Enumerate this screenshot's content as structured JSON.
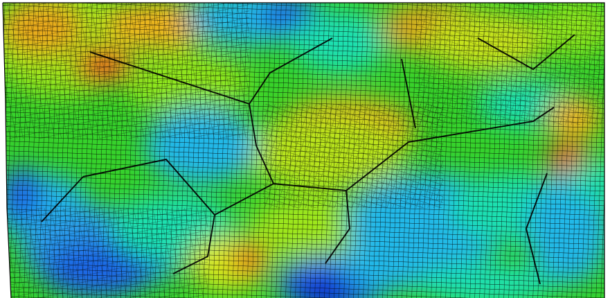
{
  "figure": {
    "kind": "finite-element mesh contour plot",
    "colormap": {
      "name": "rainbow",
      "stops": [
        "#0a1fd0",
        "#1f66e6",
        "#22b8e8",
        "#1fe0b0",
        "#28d02a",
        "#8fe61e",
        "#d7e61a",
        "#f2b41c",
        "#e6541a"
      ]
    },
    "mesh_line_color": "#000000",
    "background_color": "#ffffff"
  }
}
